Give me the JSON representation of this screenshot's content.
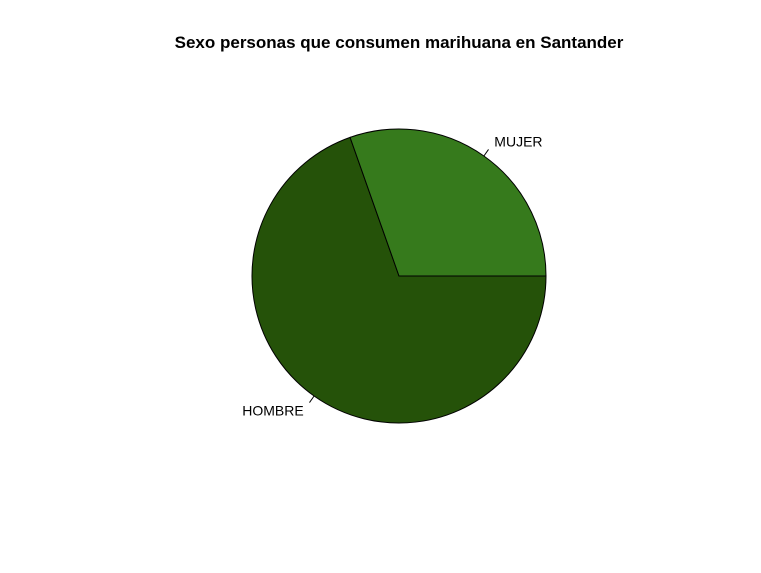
{
  "chart_data": {
    "type": "pie",
    "title": "Sexo personas que consumen marihuana en Santander",
    "categories": [
      "HOMBRE",
      "MUJER"
    ],
    "values": [
      69.6,
      30.4
    ],
    "colors": [
      "#255209",
      "#367A1C"
    ],
    "border_color": "#000000",
    "start_angle_deg": 0,
    "direction": "counterclockwise"
  }
}
